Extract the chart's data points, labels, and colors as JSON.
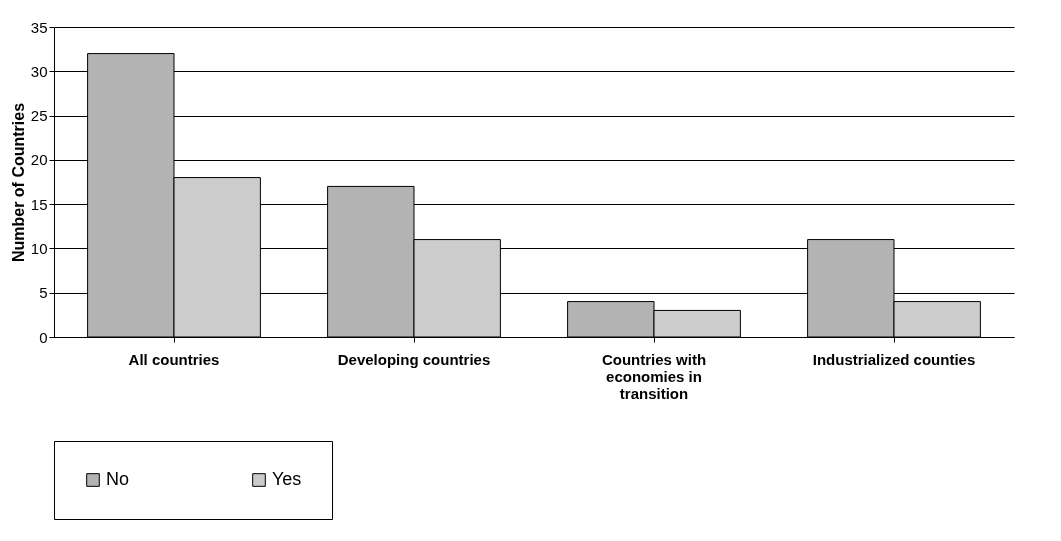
{
  "chart_data": {
    "type": "bar",
    "ylabel": "Number of Countries",
    "categories": [
      "All countries",
      "Developing countries",
      "Countries with economies in transition",
      "Industrialized counties"
    ],
    "series": [
      {
        "name": "No",
        "color": "#b3b3b3",
        "values": [
          32,
          17,
          4,
          11
        ]
      },
      {
        "name": "Yes",
        "color": "#cccccc",
        "values": [
          18,
          11,
          3,
          4
        ]
      }
    ],
    "ylim": [
      0,
      35
    ],
    "yticks": [
      0,
      5,
      10,
      15,
      20,
      25,
      30,
      35
    ],
    "grid": "y",
    "legend": "bottom"
  }
}
